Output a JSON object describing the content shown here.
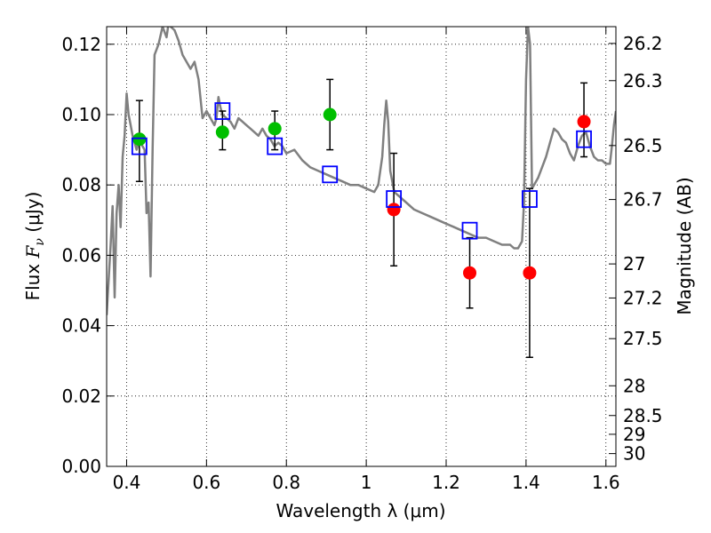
{
  "chart_data": {
    "type": "scatter",
    "xlabel": "Wavelength  λ (μm)",
    "ylabel_left": {
      "prefix": "Flux ",
      "sym": "F",
      "sub": "ν",
      "unit": " (μJy)"
    },
    "ylabel_right": "Magnitude (AB)",
    "xlim": [
      0.35,
      1.625
    ],
    "ylim": [
      0.0,
      0.125
    ],
    "grid": true,
    "x_ticks": [
      {
        "v": 0.4,
        "label": "0.4"
      },
      {
        "v": 0.6,
        "label": "0.6"
      },
      {
        "v": 0.8,
        "label": "0.8"
      },
      {
        "v": 1.0,
        "label": "1"
      },
      {
        "v": 1.2,
        "label": "1.2"
      },
      {
        "v": 1.4,
        "label": "1.4"
      },
      {
        "v": 1.6,
        "label": "1.6"
      }
    ],
    "y_ticks": [
      {
        "v": 0.0,
        "label": "0.00"
      },
      {
        "v": 0.02,
        "label": "0.02"
      },
      {
        "v": 0.04,
        "label": "0.04"
      },
      {
        "v": 0.06,
        "label": "0.06"
      },
      {
        "v": 0.08,
        "label": "0.08"
      },
      {
        "v": 0.1,
        "label": "0.10"
      },
      {
        "v": 0.12,
        "label": "0.12"
      }
    ],
    "right_ticks": [
      {
        "mag": 26.2,
        "label": "26.2"
      },
      {
        "mag": 26.3,
        "label": "26.3"
      },
      {
        "mag": 26.5,
        "label": "26.5"
      },
      {
        "mag": 26.7,
        "label": "26.7"
      },
      {
        "mag": 27.0,
        "label": "27"
      },
      {
        "mag": 27.2,
        "label": "27.2"
      },
      {
        "mag": 27.5,
        "label": "27.5"
      },
      {
        "mag": 28.0,
        "label": "28"
      },
      {
        "mag": 28.5,
        "label": "28.5"
      },
      {
        "mag": 29.0,
        "label": "29"
      },
      {
        "mag": 30.0,
        "label": "30"
      }
    ],
    "series": [
      {
        "type": "line",
        "color": "#808080",
        "points": [
          [
            0.35,
            0.043
          ],
          [
            0.36,
            0.063
          ],
          [
            0.365,
            0.074
          ],
          [
            0.37,
            0.048
          ],
          [
            0.375,
            0.072
          ],
          [
            0.38,
            0.08
          ],
          [
            0.385,
            0.068
          ],
          [
            0.39,
            0.088
          ],
          [
            0.395,
            0.094
          ],
          [
            0.4,
            0.106
          ],
          [
            0.405,
            0.1
          ],
          [
            0.41,
            0.097
          ],
          [
            0.415,
            0.094
          ],
          [
            0.42,
            0.092
          ],
          [
            0.425,
            0.09
          ],
          [
            0.43,
            0.092
          ],
          [
            0.435,
            0.092
          ],
          [
            0.44,
            0.091
          ],
          [
            0.445,
            0.09
          ],
          [
            0.45,
            0.072
          ],
          [
            0.455,
            0.075
          ],
          [
            0.46,
            0.054
          ],
          [
            0.465,
            0.09
          ],
          [
            0.47,
            0.117
          ],
          [
            0.48,
            0.12
          ],
          [
            0.49,
            0.125
          ],
          [
            0.5,
            0.122
          ],
          [
            0.505,
            0.126
          ],
          [
            0.51,
            0.125
          ],
          [
            0.52,
            0.124
          ],
          [
            0.53,
            0.121
          ],
          [
            0.54,
            0.117
          ],
          [
            0.55,
            0.115
          ],
          [
            0.56,
            0.113
          ],
          [
            0.57,
            0.115
          ],
          [
            0.58,
            0.11
          ],
          [
            0.59,
            0.099
          ],
          [
            0.6,
            0.101
          ],
          [
            0.61,
            0.099
          ],
          [
            0.62,
            0.097
          ],
          [
            0.625,
            0.099
          ],
          [
            0.63,
            0.105
          ],
          [
            0.635,
            0.102
          ],
          [
            0.64,
            0.1
          ],
          [
            0.65,
            0.099
          ],
          [
            0.66,
            0.098
          ],
          [
            0.67,
            0.096
          ],
          [
            0.68,
            0.099
          ],
          [
            0.69,
            0.098
          ],
          [
            0.7,
            0.097
          ],
          [
            0.71,
            0.096
          ],
          [
            0.72,
            0.095
          ],
          [
            0.73,
            0.094
          ],
          [
            0.74,
            0.096
          ],
          [
            0.75,
            0.094
          ],
          [
            0.76,
            0.093
          ],
          [
            0.77,
            0.091
          ],
          [
            0.78,
            0.092
          ],
          [
            0.79,
            0.091
          ],
          [
            0.8,
            0.089
          ],
          [
            0.82,
            0.09
          ],
          [
            0.84,
            0.087
          ],
          [
            0.86,
            0.085
          ],
          [
            0.88,
            0.084
          ],
          [
            0.9,
            0.083
          ],
          [
            0.92,
            0.082
          ],
          [
            0.94,
            0.081
          ],
          [
            0.96,
            0.08
          ],
          [
            0.98,
            0.08
          ],
          [
            1.0,
            0.079
          ],
          [
            1.02,
            0.078
          ],
          [
            1.03,
            0.08
          ],
          [
            1.04,
            0.088
          ],
          [
            1.045,
            0.097
          ],
          [
            1.05,
            0.104
          ],
          [
            1.055,
            0.098
          ],
          [
            1.06,
            0.084
          ],
          [
            1.07,
            0.078
          ],
          [
            1.08,
            0.077
          ],
          [
            1.1,
            0.075
          ],
          [
            1.12,
            0.073
          ],
          [
            1.14,
            0.072
          ],
          [
            1.16,
            0.071
          ],
          [
            1.18,
            0.07
          ],
          [
            1.2,
            0.069
          ],
          [
            1.22,
            0.068
          ],
          [
            1.24,
            0.067
          ],
          [
            1.26,
            0.066
          ],
          [
            1.28,
            0.065
          ],
          [
            1.3,
            0.065
          ],
          [
            1.32,
            0.064
          ],
          [
            1.34,
            0.063
          ],
          [
            1.36,
            0.063
          ],
          [
            1.37,
            0.062
          ],
          [
            1.38,
            0.062
          ],
          [
            1.39,
            0.064
          ],
          [
            1.395,
            0.075
          ],
          [
            1.4,
            0.11
          ],
          [
            1.405,
            0.125
          ],
          [
            1.41,
            0.12
          ],
          [
            1.415,
            0.079
          ],
          [
            1.42,
            0.08
          ],
          [
            1.43,
            0.082
          ],
          [
            1.44,
            0.085
          ],
          [
            1.45,
            0.088
          ],
          [
            1.46,
            0.092
          ],
          [
            1.47,
            0.096
          ],
          [
            1.48,
            0.095
          ],
          [
            1.49,
            0.093
          ],
          [
            1.5,
            0.092
          ],
          [
            1.51,
            0.089
          ],
          [
            1.52,
            0.087
          ],
          [
            1.53,
            0.091
          ],
          [
            1.54,
            0.094
          ],
          [
            1.55,
            0.095
          ],
          [
            1.56,
            0.091
          ],
          [
            1.57,
            0.088
          ],
          [
            1.58,
            0.087
          ],
          [
            1.59,
            0.087
          ],
          [
            1.6,
            0.086
          ],
          [
            1.61,
            0.086
          ],
          [
            1.615,
            0.091
          ],
          [
            1.62,
            0.097
          ],
          [
            1.625,
            0.101
          ]
        ]
      },
      {
        "type": "errorbar",
        "color": "#000000",
        "points": [
          {
            "x": 0.432,
            "lo": 0.081,
            "hi": 0.104
          },
          {
            "x": 0.64,
            "lo": 0.09,
            "hi": 0.101
          },
          {
            "x": 0.771,
            "lo": 0.09,
            "hi": 0.101
          },
          {
            "x": 0.909,
            "lo": 0.09,
            "hi": 0.11
          },
          {
            "x": 1.069,
            "lo": 0.057,
            "hi": 0.089
          },
          {
            "x": 1.259,
            "lo": 0.045,
            "hi": 0.065
          },
          {
            "x": 1.409,
            "lo": 0.031,
            "hi": 0.079
          },
          {
            "x": 1.545,
            "lo": 0.088,
            "hi": 0.109
          }
        ]
      },
      {
        "type": "scatter",
        "marker": "circle",
        "color": "#00bf00",
        "points": [
          [
            0.432,
            0.093
          ],
          [
            0.64,
            0.095
          ],
          [
            0.771,
            0.096
          ],
          [
            0.909,
            0.1
          ]
        ]
      },
      {
        "type": "scatter",
        "marker": "circle",
        "color": "#ff0000",
        "points": [
          [
            1.069,
            0.073
          ],
          [
            1.259,
            0.055
          ],
          [
            1.409,
            0.055
          ],
          [
            1.545,
            0.098
          ]
        ]
      },
      {
        "type": "scatter",
        "marker": "square-open",
        "color": "#0000ff",
        "points": [
          [
            0.432,
            0.091
          ],
          [
            0.64,
            0.101
          ],
          [
            0.771,
            0.091
          ],
          [
            0.909,
            0.083
          ],
          [
            1.069,
            0.076
          ],
          [
            1.259,
            0.067
          ],
          [
            1.409,
            0.076
          ],
          [
            1.545,
            0.093
          ]
        ]
      }
    ]
  }
}
